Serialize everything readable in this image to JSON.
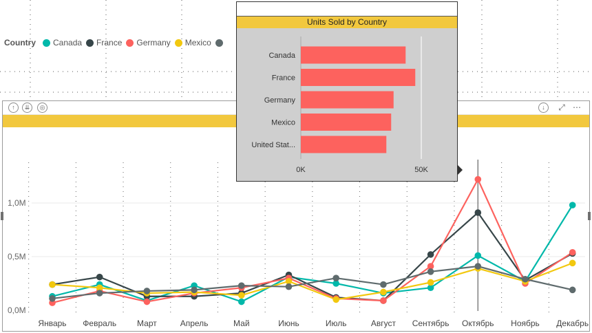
{
  "legend": {
    "title": "Country",
    "items": [
      {
        "label": "Canada",
        "color": "#01B8AA"
      },
      {
        "label": "France",
        "color": "#374649"
      },
      {
        "label": "Germany",
        "color": "#FD625E"
      },
      {
        "label": "Mexico",
        "color": "#F2C80F"
      },
      {
        "label": "",
        "color": "#5F6B6D"
      }
    ]
  },
  "tooltip": {
    "title": "Units Sold by Country"
  },
  "chart_data": [
    {
      "type": "line",
      "categories": [
        "Январь",
        "Февраль",
        "Март",
        "Апрель",
        "Май",
        "Июнь",
        "Июль",
        "Август",
        "Сентябрь",
        "Октябрь",
        "Ноябрь",
        "Декабрь"
      ],
      "yticks": [
        "0,0M",
        "0,5M",
        "1,0M"
      ],
      "ylim": [
        0,
        1.25
      ],
      "series": [
        {
          "name": "Canada",
          "color": "#01B8AA",
          "values": [
            0.13,
            0.24,
            0.09,
            0.23,
            0.08,
            0.31,
            0.25,
            0.16,
            0.21,
            0.51,
            0.27,
            0.98
          ]
        },
        {
          "name": "France",
          "color": "#374649",
          "values": [
            0.24,
            0.31,
            0.13,
            0.13,
            0.16,
            0.33,
            0.12,
            0.09,
            0.52,
            0.91,
            0.28,
            0.53
          ]
        },
        {
          "name": "Germany",
          "color": "#FD625E",
          "values": [
            0.07,
            0.18,
            0.08,
            0.16,
            0.21,
            0.3,
            0.11,
            0.09,
            0.41,
            1.22,
            0.25,
            0.54
          ]
        },
        {
          "name": "Mexico",
          "color": "#F2C80F",
          "values": [
            0.24,
            0.21,
            0.16,
            0.17,
            0.14,
            0.27,
            0.1,
            0.17,
            0.26,
            0.39,
            0.27,
            0.44
          ]
        },
        {
          "name": "",
          "color": "#5F6B6D",
          "values": [
            0.11,
            0.16,
            0.18,
            0.19,
            0.23,
            0.22,
            0.3,
            0.24,
            0.36,
            0.41,
            0.29,
            0.19
          ]
        }
      ],
      "highlight_category": "Октябрь"
    },
    {
      "type": "bar",
      "orientation": "horizontal",
      "title": "Units Sold by Country",
      "categories": [
        "Canada",
        "France",
        "Germany",
        "Mexico",
        "United Stat..."
      ],
      "values": [
        43500,
        47500,
        38500,
        37500,
        35500
      ],
      "xticks": [
        "0K",
        "50K"
      ],
      "xlim": [
        0,
        50000
      ],
      "color": "#FD625E"
    }
  ]
}
